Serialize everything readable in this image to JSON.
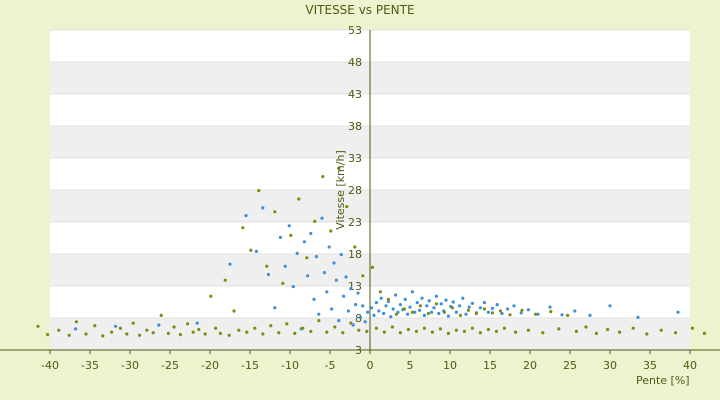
{
  "chart_data": {
    "type": "scatter",
    "title": "VITESSE vs PENTE",
    "xlabel": "Pente [%]",
    "ylabel": "Vitesse [km/h]",
    "xlim": [
      -40,
      40
    ],
    "ylim": [
      3,
      53
    ],
    "xticks": [
      -40,
      -35,
      -30,
      -25,
      -20,
      -15,
      -10,
      -5,
      0,
      5,
      10,
      15,
      20,
      25,
      30,
      35,
      40
    ],
    "yticks": [
      3,
      8,
      13,
      18,
      23,
      28,
      33,
      38,
      43,
      48,
      53
    ],
    "grid": true,
    "legend": "none",
    "colors": {
      "background": "#eef3cf",
      "plot_band_light": "#ffffff",
      "plot_band_dark": "#efefef",
      "axis": "#4f5a12",
      "series_blue": "#3b8fdc",
      "series_olive": "#7d8c10"
    },
    "series": [
      {
        "color": "#3b8fdc",
        "points": [
          [
            -17.5,
            16.4
          ],
          [
            -15.5,
            24.0
          ],
          [
            -14.2,
            18.4
          ],
          [
            -13.4,
            25.2
          ],
          [
            -12.7,
            14.8
          ],
          [
            -11.9,
            9.6
          ],
          [
            -11.2,
            20.6
          ],
          [
            -10.6,
            16.1
          ],
          [
            -10.1,
            22.4
          ],
          [
            -9.6,
            12.9
          ],
          [
            -9.1,
            18.1
          ],
          [
            -8.6,
            6.3
          ],
          [
            -8.2,
            19.9
          ],
          [
            -7.8,
            14.6
          ],
          [
            -7.4,
            21.2
          ],
          [
            -7.0,
            10.9
          ],
          [
            -6.7,
            17.6
          ],
          [
            -6.4,
            8.6
          ],
          [
            -6.0,
            23.6
          ],
          [
            -5.7,
            15.1
          ],
          [
            -5.4,
            12.1
          ],
          [
            -5.1,
            19.1
          ],
          [
            -4.8,
            9.4
          ],
          [
            -4.5,
            16.6
          ],
          [
            -4.2,
            13.9
          ],
          [
            -3.9,
            7.6
          ],
          [
            -3.6,
            17.9
          ],
          [
            -3.3,
            11.4
          ],
          [
            -3.0,
            14.4
          ],
          [
            -2.7,
            9.1
          ],
          [
            -2.4,
            12.6
          ],
          [
            -2.1,
            6.9
          ],
          [
            -1.8,
            10.1
          ],
          [
            -1.5,
            11.9
          ],
          [
            -1.2,
            8.1
          ],
          [
            -0.9,
            9.9
          ],
          [
            -0.6,
            7.4
          ],
          [
            -0.3,
            8.9
          ],
          [
            0.2,
            9.6
          ],
          [
            0.5,
            8.4
          ],
          [
            0.8,
            10.4
          ],
          [
            1.1,
            9.1
          ],
          [
            1.4,
            11.1
          ],
          [
            1.7,
            8.7
          ],
          [
            2.0,
            9.9
          ],
          [
            2.3,
            10.6
          ],
          [
            2.6,
            8.2
          ],
          [
            2.9,
            9.4
          ],
          [
            3.2,
            11.6
          ],
          [
            3.5,
            8.9
          ],
          [
            3.8,
            10.1
          ],
          [
            4.1,
            9.3
          ],
          [
            4.4,
            10.9
          ],
          [
            4.7,
            8.6
          ],
          [
            5.0,
            9.7
          ],
          [
            5.3,
            12.1
          ],
          [
            5.6,
            8.9
          ],
          [
            5.9,
            10.4
          ],
          [
            6.2,
            9.2
          ],
          [
            6.5,
            11.1
          ],
          [
            6.8,
            8.4
          ],
          [
            7.1,
            9.9
          ],
          [
            7.4,
            10.7
          ],
          [
            7.7,
            8.9
          ],
          [
            8.0,
            9.6
          ],
          [
            8.3,
            11.4
          ],
          [
            8.6,
            8.7
          ],
          [
            8.9,
            10.2
          ],
          [
            9.2,
            9.1
          ],
          [
            9.5,
            10.8
          ],
          [
            9.8,
            8.3
          ],
          [
            10.1,
            9.8
          ],
          [
            10.4,
            10.5
          ],
          [
            10.8,
            8.9
          ],
          [
            11.2,
            9.9
          ],
          [
            11.6,
            11.1
          ],
          [
            12.0,
            8.6
          ],
          [
            12.4,
            9.7
          ],
          [
            12.8,
            10.3
          ],
          [
            13.3,
            8.8
          ],
          [
            13.8,
            9.6
          ],
          [
            14.3,
            10.4
          ],
          [
            14.8,
            8.9
          ],
          [
            15.3,
            9.5
          ],
          [
            15.9,
            10.1
          ],
          [
            16.5,
            8.7
          ],
          [
            17.2,
            9.4
          ],
          [
            18.0,
            9.9
          ],
          [
            18.9,
            8.8
          ],
          [
            19.8,
            9.3
          ],
          [
            21.0,
            8.6
          ],
          [
            22.5,
            9.7
          ],
          [
            24.0,
            8.5
          ],
          [
            25.6,
            9.1
          ],
          [
            27.5,
            8.4
          ],
          [
            30.0,
            9.9
          ],
          [
            33.5,
            8.1
          ],
          [
            38.5,
            8.9
          ],
          [
            -31.8,
            6.7
          ],
          [
            -36.8,
            6.3
          ],
          [
            -26.4,
            6.9
          ],
          [
            -21.6,
            7.2
          ]
        ]
      },
      {
        "color": "#7d8c10",
        "points": [
          [
            -41.5,
            6.7
          ],
          [
            -40.3,
            5.4
          ],
          [
            -38.9,
            6.1
          ],
          [
            -37.6,
            5.3
          ],
          [
            -36.7,
            7.4
          ],
          [
            -35.5,
            5.5
          ],
          [
            -34.4,
            6.8
          ],
          [
            -33.4,
            5.2
          ],
          [
            -32.3,
            5.8
          ],
          [
            -31.2,
            6.4
          ],
          [
            -30.4,
            5.5
          ],
          [
            -29.6,
            7.2
          ],
          [
            -28.8,
            5.3
          ],
          [
            -27.9,
            6.1
          ],
          [
            -27.1,
            5.7
          ],
          [
            -26.1,
            8.4
          ],
          [
            -25.2,
            5.6
          ],
          [
            -24.5,
            6.6
          ],
          [
            -23.7,
            5.4
          ],
          [
            -22.8,
            7.1
          ],
          [
            -22.1,
            5.8
          ],
          [
            -21.4,
            6.2
          ],
          [
            -20.6,
            5.5
          ],
          [
            -19.9,
            11.4
          ],
          [
            -19.3,
            6.4
          ],
          [
            -18.7,
            5.6
          ],
          [
            -18.1,
            13.9
          ],
          [
            -17.6,
            5.3
          ],
          [
            -17.0,
            9.1
          ],
          [
            -16.4,
            6.1
          ],
          [
            -15.9,
            22.1
          ],
          [
            -15.4,
            5.8
          ],
          [
            -14.9,
            18.6
          ],
          [
            -14.4,
            6.4
          ],
          [
            -13.9,
            27.9
          ],
          [
            -13.4,
            5.5
          ],
          [
            -12.9,
            16.1
          ],
          [
            -12.4,
            6.8
          ],
          [
            -11.9,
            24.6
          ],
          [
            -11.4,
            5.7
          ],
          [
            -10.9,
            13.4
          ],
          [
            -10.4,
            7.1
          ],
          [
            -9.9,
            20.9
          ],
          [
            -9.4,
            5.6
          ],
          [
            -8.9,
            26.6
          ],
          [
            -8.4,
            6.4
          ],
          [
            -7.9,
            17.4
          ],
          [
            -7.4,
            5.9
          ],
          [
            -6.9,
            23.1
          ],
          [
            -6.4,
            7.6
          ],
          [
            -5.9,
            30.1
          ],
          [
            -5.4,
            5.8
          ],
          [
            -4.9,
            21.6
          ],
          [
            -4.4,
            6.6
          ],
          [
            -3.9,
            31.4
          ],
          [
            -3.4,
            5.7
          ],
          [
            -2.9,
            25.4
          ],
          [
            -2.4,
            7.2
          ],
          [
            -1.9,
            19.1
          ],
          [
            -1.4,
            6.1
          ],
          [
            -0.9,
            14.6
          ],
          [
            -0.4,
            5.9
          ],
          [
            0.3,
            15.9
          ],
          [
            0.8,
            6.4
          ],
          [
            1.3,
            12.1
          ],
          [
            1.8,
            5.8
          ],
          [
            2.3,
            10.9
          ],
          [
            2.8,
            6.6
          ],
          [
            3.3,
            8.6
          ],
          [
            3.8,
            5.7
          ],
          [
            4.3,
            9.4
          ],
          [
            4.8,
            6.2
          ],
          [
            5.3,
            8.9
          ],
          [
            5.8,
            5.9
          ],
          [
            6.3,
            9.9
          ],
          [
            6.8,
            6.4
          ],
          [
            7.3,
            8.7
          ],
          [
            7.8,
            5.8
          ],
          [
            8.3,
            10.2
          ],
          [
            8.8,
            6.3
          ],
          [
            9.3,
            8.9
          ],
          [
            9.8,
            5.6
          ],
          [
            10.3,
            9.6
          ],
          [
            10.8,
            6.1
          ],
          [
            11.3,
            8.4
          ],
          [
            11.8,
            5.9
          ],
          [
            12.3,
            9.2
          ],
          [
            12.8,
            6.4
          ],
          [
            13.3,
            8.7
          ],
          [
            13.8,
            5.7
          ],
          [
            14.3,
            9.4
          ],
          [
            14.8,
            6.2
          ],
          [
            15.3,
            8.8
          ],
          [
            15.8,
            5.9
          ],
          [
            16.3,
            9.1
          ],
          [
            16.8,
            6.4
          ],
          [
            17.5,
            8.5
          ],
          [
            18.2,
            5.8
          ],
          [
            19.0,
            9.2
          ],
          [
            19.8,
            6.1
          ],
          [
            20.7,
            8.6
          ],
          [
            21.6,
            5.7
          ],
          [
            22.6,
            9.0
          ],
          [
            23.6,
            6.3
          ],
          [
            24.7,
            8.4
          ],
          [
            25.8,
            5.9
          ],
          [
            27.0,
            6.6
          ],
          [
            28.3,
            5.6
          ],
          [
            29.7,
            6.2
          ],
          [
            31.2,
            5.8
          ],
          [
            32.9,
            6.4
          ],
          [
            34.6,
            5.5
          ],
          [
            36.4,
            6.1
          ],
          [
            38.2,
            5.7
          ],
          [
            40.3,
            6.4
          ],
          [
            41.8,
            5.6
          ]
        ]
      }
    ]
  }
}
